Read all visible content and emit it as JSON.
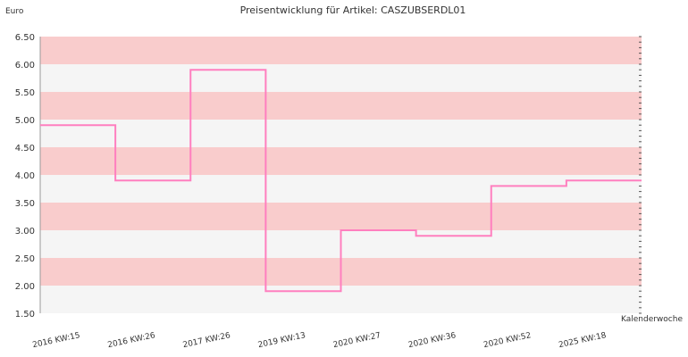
{
  "chart_data": {
    "type": "line",
    "title": "Preisentwicklung für Artikel: CASZUBSERDL01",
    "ylabel": "Euro",
    "xlabel": "Kalenderwoche",
    "ylim": [
      1.5,
      6.5
    ],
    "yticks": [
      "1.50",
      "2.00",
      "2.50",
      "3.00",
      "3.50",
      "4.00",
      "4.50",
      "5.00",
      "5.50",
      "6.00",
      "6.50"
    ],
    "categories": [
      "2016 KW:15",
      "2016 KW:26",
      "2017 KW:26",
      "2019 KW:13",
      "2020 KW:27",
      "2020 KW:36",
      "2020 KW:52",
      "2025 KW:18",
      ""
    ],
    "series": [
      {
        "values": [
          4.9,
          3.9,
          5.9,
          1.9,
          3.0,
          2.9,
          3.8,
          3.9,
          3.9
        ]
      }
    ],
    "step": true,
    "grid": true,
    "colors": {
      "line": "#ff7fbf",
      "band_pink": "#f9cccc",
      "band_light": "#f5f5f5",
      "axis": "#999999"
    }
  }
}
